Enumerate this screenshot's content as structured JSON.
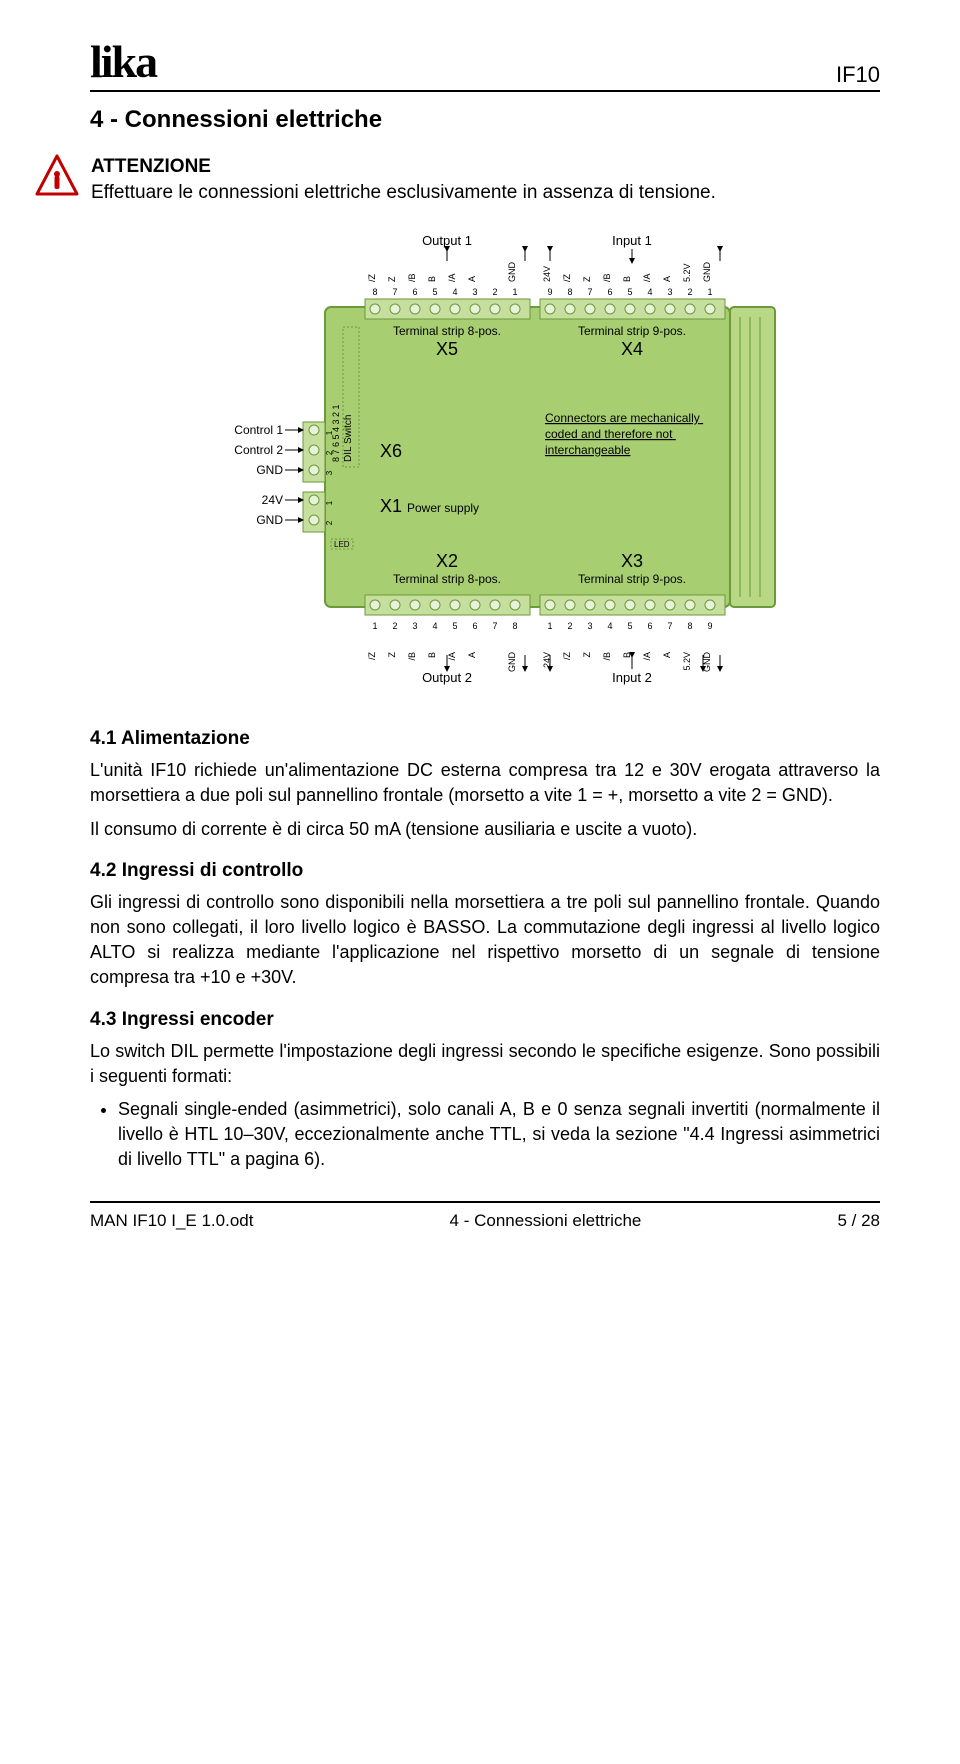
{
  "header": {
    "logo": "lika",
    "model": "IF10"
  },
  "section_title": "4 - Connessioni elettriche",
  "warning": {
    "title": "ATTENZIONE",
    "text": "Effettuare le connessioni elettriche esclusivamente in assenza di tensione."
  },
  "diagram": {
    "module_color": "#a8ce72",
    "module_stroke": "#6a9a3a",
    "terminal_fill": "#c6df9f",
    "text_color": "#000000",
    "top_left_label": "Output 1",
    "top_right_label": "Input 1",
    "bottom_left_label": "Output 2",
    "bottom_right_label": "Input 2",
    "x5_caption": "Terminal strip 8-pos.",
    "x5": "X5",
    "x4_caption": "Terminal strip 9-pos.",
    "x4": "X4",
    "x2": "X2",
    "x2_caption": "Terminal strip 8-pos.",
    "x3": "X3",
    "x3_caption": "Terminal strip 9-pos.",
    "x6": "X6",
    "x1": "X1",
    "x1_label": "Power supply",
    "dil": "DIL Switch",
    "led": "LED",
    "note": "Connectors are mechanically coded and therefore not interchangeable",
    "left_signals": {
      "c1": "Control 1",
      "c2": "Control 2",
      "g1": "GND",
      "v24": "24V",
      "g2": "GND"
    },
    "pins8_labels": [
      "/Z",
      "Z",
      "/B",
      "B",
      "/A",
      "A",
      "GND"
    ],
    "pins8_nums": [
      "8",
      "7",
      "6",
      "5",
      "4",
      "3",
      "2",
      "1"
    ],
    "pins9_labels": [
      "24V",
      "/Z",
      "Z",
      "/B",
      "B",
      "/A",
      "A",
      "5.2V",
      "GND"
    ],
    "pins9_nums": [
      "9",
      "8",
      "7",
      "6",
      "5",
      "4",
      "3",
      "2",
      "1"
    ],
    "pins8b_nums": [
      "1",
      "2",
      "3",
      "4",
      "5",
      "6",
      "7",
      "8"
    ],
    "pins9b_nums": [
      "1",
      "2",
      "3",
      "4",
      "5",
      "6",
      "7",
      "8",
      "9"
    ]
  },
  "s41": {
    "title": "4.1 Alimentazione",
    "p1": "L'unità IF10 richiede un'alimentazione DC esterna compresa tra 12 e 30V erogata attraverso la morsettiera a due poli sul pannellino frontale (morsetto a vite 1 = +, morsetto a vite 2 = GND).",
    "p2": "Il consumo di corrente è di circa 50 mA (tensione ausiliaria e uscite a vuoto)."
  },
  "s42": {
    "title": "4.2 Ingressi di controllo",
    "p1": "Gli ingressi di controllo sono disponibili nella morsettiera a tre poli sul pannellino frontale. Quando non sono collegati, il loro livello logico è BASSO. La commutazione degli ingressi al livello logico ALTO si realizza mediante l'applicazione nel rispettivo morsetto di un segnale di tensione compresa tra +10 e +30V."
  },
  "s43": {
    "title": "4.3 Ingressi encoder",
    "p1": "Lo switch DIL permette l'impostazione degli ingressi secondo le specifiche esigenze. Sono possibili i seguenti formati:",
    "b1": "Segnali single-ended (asimmetrici), solo canali A, B e 0 senza segnali invertiti (normalmente il livello è HTL 10–30V, eccezionalmente anche TTL, si veda la sezione \"4.4 Ingressi asimmetrici di livello TTL\" a pagina 6)."
  },
  "footer": {
    "left": "MAN IF10 I_E 1.0.odt",
    "center": "4 - Connessioni elettriche",
    "right": "5 / 28"
  }
}
